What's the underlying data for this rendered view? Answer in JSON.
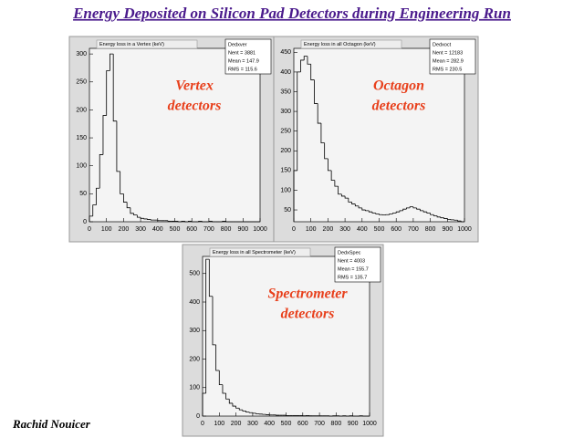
{
  "slide": {
    "title": "Energy Deposited on Silicon Pad Detectors during Engineering Run",
    "author": "Rachid Nouicer"
  },
  "chart_data": [
    {
      "type": "histogram",
      "title": "Energy loss in a Vertex (keV)",
      "annotation": [
        "Vertex",
        "detectors"
      ],
      "stats": {
        "name": "Dedxver",
        "lines": [
          "Nent = 3881",
          "Mean = 147.9",
          "RMS = 115.6"
        ]
      },
      "bins": [
        0,
        20,
        40,
        60,
        80,
        100,
        120,
        140,
        160,
        180,
        200,
        220,
        240,
        260,
        280,
        300,
        320,
        340,
        360,
        380,
        400,
        420,
        440,
        460,
        480,
        500,
        520,
        540,
        560,
        580,
        600,
        620,
        640,
        660,
        680,
        700,
        720,
        740,
        760,
        780,
        800,
        820,
        840,
        860,
        880,
        900,
        920,
        940,
        960,
        980,
        1000
      ],
      "values": [
        10,
        30,
        60,
        120,
        190,
        270,
        300,
        180,
        90,
        50,
        35,
        25,
        15,
        12,
        8,
        6,
        5,
        4,
        3,
        3,
        2,
        2,
        2,
        1,
        1,
        1,
        0,
        1,
        0,
        1,
        0,
        0,
        1,
        0,
        0,
        1,
        0,
        0,
        0,
        1,
        0,
        0,
        0,
        0,
        0,
        0,
        0,
        0,
        0,
        0
      ],
      "color": "#000000",
      "xlim": [
        0,
        1000
      ],
      "xticks": [
        0,
        100,
        200,
        300,
        400,
        500,
        600,
        700,
        800,
        900,
        1000
      ],
      "ylim": [
        0,
        310
      ],
      "yticks": [
        0,
        50,
        100,
        150,
        200,
        250,
        300
      ]
    },
    {
      "type": "histogram",
      "title": "Energy loss in all Octagon (keV)",
      "annotation": [
        "Octagon",
        "detectors"
      ],
      "stats": {
        "name": "Dedxoct",
        "lines": [
          "Nent = 12183",
          "Mean = 282.9",
          "RMS = 230.5"
        ]
      },
      "bins": [
        0,
        20,
        40,
        60,
        80,
        100,
        120,
        140,
        160,
        180,
        200,
        220,
        240,
        260,
        280,
        300,
        320,
        340,
        360,
        380,
        400,
        420,
        440,
        460,
        480,
        500,
        520,
        540,
        560,
        580,
        600,
        620,
        640,
        660,
        680,
        700,
        720,
        740,
        760,
        780,
        800,
        820,
        840,
        860,
        880,
        900,
        920,
        940,
        960,
        980,
        1000
      ],
      "values": [
        150,
        400,
        430,
        440,
        420,
        380,
        320,
        270,
        220,
        180,
        150,
        125,
        110,
        90,
        85,
        80,
        70,
        65,
        60,
        55,
        50,
        48,
        45,
        42,
        40,
        38,
        37,
        38,
        40,
        42,
        45,
        48,
        52,
        55,
        58,
        55,
        52,
        48,
        45,
        42,
        38,
        35,
        32,
        30,
        28,
        26,
        25,
        24,
        22,
        20
      ],
      "color": "#000000",
      "xlim": [
        0,
        1000
      ],
      "xticks": [
        0,
        100,
        200,
        300,
        400,
        500,
        600,
        700,
        800,
        900,
        1000
      ],
      "ylim": [
        20,
        460
      ],
      "yticks": [
        50,
        100,
        150,
        200,
        250,
        300,
        350,
        400,
        450
      ]
    },
    {
      "type": "histogram",
      "title": "Energy loss in all Spectrometer (keV)",
      "annotation": [
        "Spectrometer",
        "detectors"
      ],
      "stats": {
        "name": "DedxSpec",
        "lines": [
          "Nent = 4003",
          "Mean = 155.7",
          "RMS = 135.7"
        ]
      },
      "bins": [
        0,
        20,
        40,
        60,
        80,
        100,
        120,
        140,
        160,
        180,
        200,
        220,
        240,
        260,
        280,
        300,
        320,
        340,
        360,
        380,
        400,
        420,
        440,
        460,
        480,
        500,
        520,
        540,
        560,
        580,
        600,
        620,
        640,
        660,
        680,
        700,
        720,
        740,
        760,
        780,
        800,
        820,
        840,
        860,
        880,
        900,
        920,
        940,
        960,
        980,
        1000
      ],
      "values": [
        80,
        550,
        420,
        250,
        160,
        110,
        80,
        60,
        45,
        35,
        28,
        22,
        18,
        14,
        12,
        10,
        8,
        7,
        6,
        5,
        4,
        4,
        3,
        3,
        3,
        2,
        2,
        2,
        2,
        2,
        1,
        2,
        1,
        1,
        1,
        1,
        1,
        1,
        0,
        1,
        1,
        0,
        1,
        0,
        1,
        0,
        0,
        1,
        0,
        0
      ],
      "color": "#000000",
      "xlim": [
        0,
        1000
      ],
      "xticks": [
        0,
        100,
        200,
        300,
        400,
        500,
        600,
        700,
        800,
        900,
        1000
      ],
      "ylim": [
        0,
        560
      ],
      "yticks": [
        0,
        100,
        200,
        300,
        400,
        500
      ]
    }
  ]
}
